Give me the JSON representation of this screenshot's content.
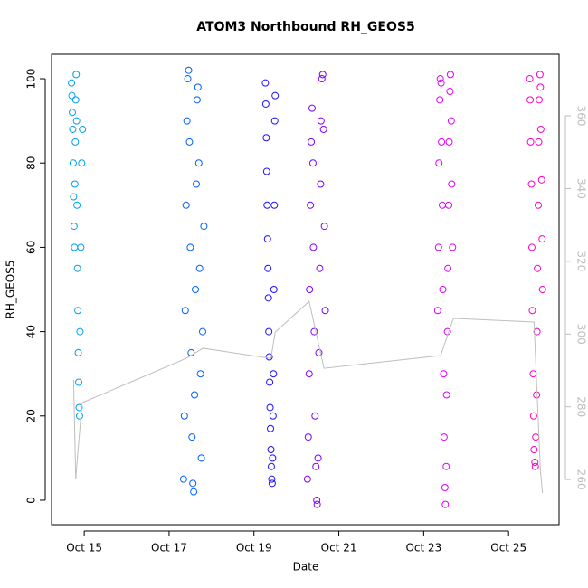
{
  "chart_data": {
    "type": "scatter",
    "title": "ATOM3 Northbound RH_GEOS5",
    "xlabel": "Date",
    "ylabel": "RH_GEOS5",
    "xlim": [
      14.23,
      26.19
    ],
    "ylim": [
      -5.8,
      105.8
    ],
    "y2lim": [
      247.6,
      376.9
    ],
    "xticks": [
      {
        "value": 15,
        "label": "Oct 15"
      },
      {
        "value": 17,
        "label": "Oct 17"
      },
      {
        "value": 19,
        "label": "Oct 19"
      },
      {
        "value": 21,
        "label": "Oct 21"
      },
      {
        "value": 23,
        "label": "Oct 23"
      },
      {
        "value": 25,
        "label": "Oct 25"
      }
    ],
    "yticks": [
      0,
      20,
      40,
      60,
      80,
      100
    ],
    "y2ticks": [
      260,
      280,
      300,
      320,
      340,
      360
    ],
    "y2color": "#bebebe",
    "series": [
      {
        "type": "scatter",
        "color": "#00a0f0",
        "x": [
          14.7,
          14.71,
          14.72,
          14.73,
          14.74,
          14.75,
          14.76,
          14.77,
          14.78,
          14.79,
          14.8,
          14.81,
          14.82,
          14.83,
          14.84,
          14.85,
          14.86,
          14.87,
          14.88,
          14.89,
          14.9,
          14.92,
          14.94,
          14.96
        ],
        "values": [
          99,
          96,
          92,
          88,
          80,
          72,
          65,
          60,
          75,
          85,
          95,
          101,
          90,
          70,
          55,
          45,
          35,
          28,
          22,
          20,
          40,
          60,
          80,
          88
        ]
      },
      {
        "type": "scatter",
        "color": "#0060ff",
        "x": [
          17.34,
          17.36,
          17.38,
          17.4,
          17.42,
          17.44,
          17.46,
          17.48,
          17.5,
          17.52,
          17.54,
          17.56,
          17.58,
          17.6,
          17.62,
          17.64,
          17.66,
          17.68,
          17.7,
          17.72,
          17.74,
          17.76,
          17.79,
          17.82
        ],
        "values": [
          5,
          20,
          45,
          70,
          90,
          100,
          102,
          85,
          60,
          35,
          15,
          4,
          2,
          25,
          50,
          75,
          95,
          98,
          80,
          55,
          30,
          10,
          40,
          65
        ]
      },
      {
        "type": "scatter",
        "color": "#2010ff",
        "x": [
          19.27,
          19.28,
          19.29,
          19.3,
          19.31,
          19.32,
          19.33,
          19.34,
          19.35,
          19.36,
          19.37,
          19.38,
          19.39,
          19.4,
          19.41,
          19.42,
          19.43,
          19.44,
          19.45,
          19.46,
          19.47,
          19.48,
          19.49,
          19.5
        ],
        "values": [
          99,
          94,
          86,
          78,
          70,
          62,
          55,
          48,
          40,
          34,
          28,
          22,
          17,
          12,
          8,
          5,
          4,
          10,
          20,
          30,
          50,
          70,
          90,
          96
        ]
      },
      {
        "type": "scatter",
        "color": "#8000ff",
        "x": [
          20.26,
          20.28,
          20.3,
          20.31,
          20.33,
          20.35,
          20.37,
          20.39,
          20.4,
          20.42,
          20.44,
          20.46,
          20.48,
          20.49,
          20.51,
          20.53,
          20.55,
          20.57,
          20.58,
          20.6,
          20.62,
          20.64,
          20.66,
          20.68
        ],
        "values": [
          5,
          15,
          30,
          50,
          70,
          85,
          93,
          80,
          60,
          40,
          20,
          8,
          0,
          -1,
          10,
          35,
          55,
          75,
          90,
          100,
          101,
          88,
          65,
          45
        ]
      },
      {
        "type": "scatter",
        "color": "#e000ff",
        "x": [
          23.33,
          23.35,
          23.36,
          23.38,
          23.39,
          23.41,
          23.42,
          23.44,
          23.45,
          23.47,
          23.48,
          23.5,
          23.51,
          23.53,
          23.54,
          23.56,
          23.57,
          23.59,
          23.6,
          23.62,
          23.63,
          23.65,
          23.66,
          23.68
        ],
        "values": [
          45,
          60,
          80,
          95,
          100,
          99,
          85,
          70,
          50,
          30,
          15,
          3,
          -1,
          8,
          25,
          40,
          55,
          70,
          85,
          97,
          101,
          90,
          75,
          60
        ]
      },
      {
        "type": "scatter",
        "color": "#ff00c8",
        "x": [
          25.5,
          25.51,
          25.52,
          25.54,
          25.55,
          25.56,
          25.58,
          25.59,
          25.6,
          25.62,
          25.63,
          25.64,
          25.66,
          25.67,
          25.68,
          25.7,
          25.71,
          25.72,
          25.74,
          25.75,
          25.76,
          25.78,
          25.79,
          25.8
        ],
        "values": [
          100,
          95,
          85,
          75,
          60,
          45,
          30,
          20,
          12,
          9,
          8,
          15,
          25,
          40,
          55,
          70,
          85,
          95,
          101,
          98,
          88,
          76,
          62,
          50
        ]
      },
      {
        "type": "line",
        "axis": "y2",
        "color": "#bebebe",
        "x": [
          14.75,
          14.8,
          14.85,
          14.95,
          17.4,
          17.8,
          19.4,
          19.5,
          20.3,
          20.65,
          23.4,
          23.7,
          25.6,
          25.75,
          25.8
        ],
        "values": [
          287.4,
          260,
          267.5,
          281.1,
          293.3,
          296.1,
          293.3,
          300.5,
          309,
          290.6,
          294.1,
          304.3,
          303.3,
          262.5,
          256.3
        ]
      }
    ]
  }
}
